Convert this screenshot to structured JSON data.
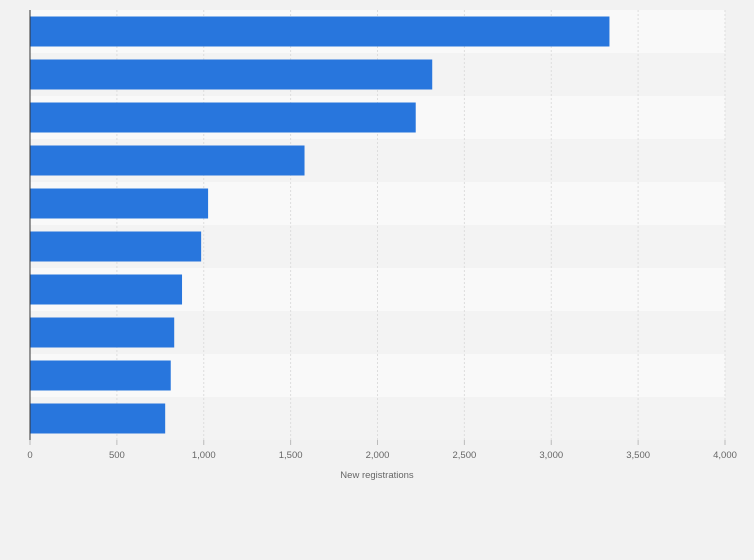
{
  "chart_data": {
    "type": "bar",
    "orientation": "horizontal",
    "categories": [
      "",
      "",
      "",
      "",
      "",
      "",
      "",
      "",
      "",
      ""
    ],
    "values": [
      3335,
      2315,
      2220,
      1580,
      1025,
      985,
      875,
      830,
      810,
      778
    ],
    "title": "",
    "xlabel": "New registrations",
    "ylabel": "",
    "xlim": [
      0,
      4000
    ],
    "x_ticks": [
      0,
      500,
      1000,
      1500,
      2000,
      2500,
      3000,
      3500,
      4000
    ],
    "x_tick_labels": [
      "0",
      "500",
      "1,000",
      "1,500",
      "2,000",
      "2,500",
      "3,000",
      "3,500",
      "4,000"
    ],
    "grid": "vertical gridlines, alternating row bands",
    "bar_color": "#2876dd",
    "band_colors": [
      "#f9f9f9",
      "#f3f3f3"
    ],
    "grid_color": "#dddddd",
    "axis_color": "#333333",
    "legend": "none"
  }
}
